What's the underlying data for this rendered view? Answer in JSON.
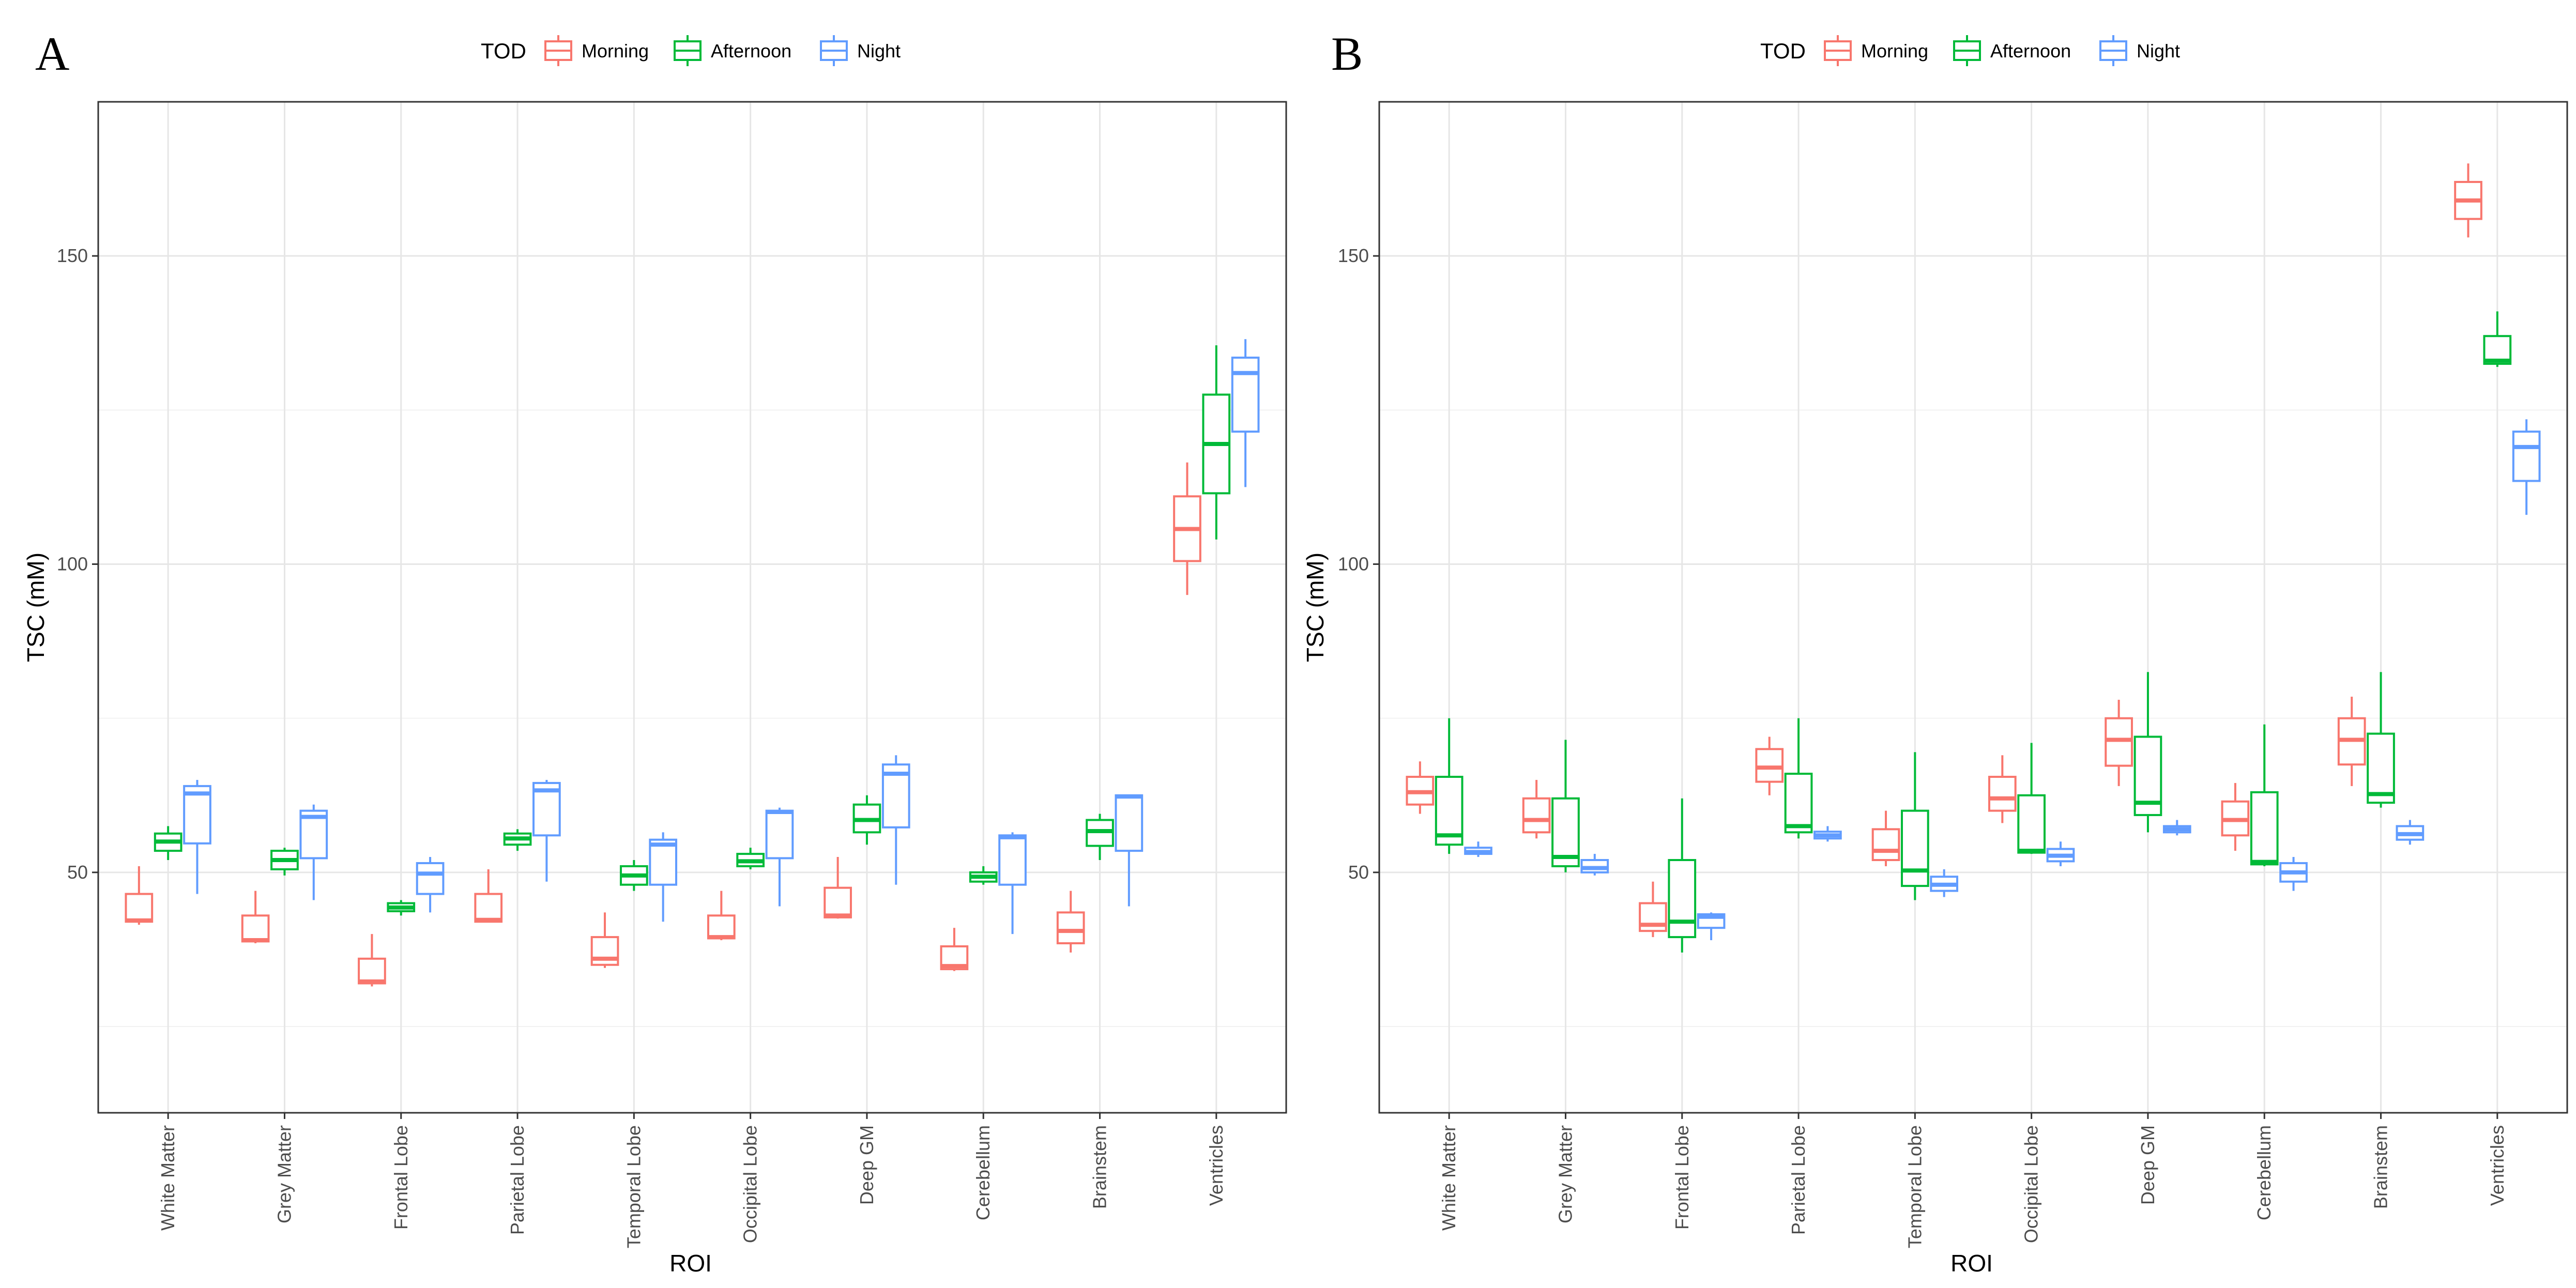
{
  "chart_data": [
    {
      "type": "boxplot",
      "panel_label": "A",
      "xlabel": "ROI",
      "ylabel": "TSC (mM)",
      "ylim": [
        11,
        175
      ],
      "yticks": [
        50,
        100,
        150
      ],
      "grid": true,
      "legend": {
        "title": "TOD",
        "position": "top",
        "entries": [
          {
            "name": "Morning",
            "color": "#F8766D"
          },
          {
            "name": "Afternoon",
            "color": "#00BA38"
          },
          {
            "name": "Night",
            "color": "#619CFF"
          }
        ]
      },
      "categories": [
        "White Matter",
        "Grey Matter",
        "Frontal Lobe",
        "Parietal Lobe",
        "Temporal Lobe",
        "Occipital Lobe",
        "Deep GM",
        "Cerebellum",
        "Brainstem",
        "Ventricles"
      ],
      "series": [
        {
          "name": "Morning",
          "color": "#F8766D",
          "boxes": [
            {
              "min": 41.5,
              "q1": 42,
              "median": 42.2,
              "q3": 46.5,
              "max": 51
            },
            {
              "min": 38.5,
              "q1": 38.8,
              "median": 39,
              "q3": 43,
              "max": 47
            },
            {
              "min": 31.5,
              "q1": 32,
              "median": 32.3,
              "q3": 36,
              "max": 40
            },
            {
              "min": 42,
              "q1": 42,
              "median": 42.3,
              "q3": 46.5,
              "max": 50.5
            },
            {
              "min": 34.5,
              "q1": 35,
              "median": 36,
              "q3": 39.5,
              "max": 43.5
            },
            {
              "min": 39,
              "q1": 39.3,
              "median": 39.5,
              "q3": 43,
              "max": 47
            },
            {
              "min": 42.5,
              "q1": 42.7,
              "median": 43,
              "q3": 47.5,
              "max": 52.5
            },
            {
              "min": 34,
              "q1": 34.3,
              "median": 34.8,
              "q3": 38,
              "max": 41
            },
            {
              "min": 37,
              "q1": 38.5,
              "median": 40.5,
              "q3": 43.5,
              "max": 47
            },
            {
              "min": 95,
              "q1": 100.5,
              "median": 105.7,
              "q3": 111,
              "max": 116.5
            }
          ]
        },
        {
          "name": "Afternoon",
          "color": "#00BA38",
          "boxes": [
            {
              "min": 52,
              "q1": 53.5,
              "median": 55,
              "q3": 56.3,
              "max": 57.5
            },
            {
              "min": 49.5,
              "q1": 50.5,
              "median": 52,
              "q3": 53.5,
              "max": 54
            },
            {
              "min": 43,
              "q1": 43.7,
              "median": 44.3,
              "q3": 45,
              "max": 45.5
            },
            {
              "min": 53.5,
              "q1": 54.5,
              "median": 55.5,
              "q3": 56.3,
              "max": 57
            },
            {
              "min": 47,
              "q1": 48,
              "median": 49.5,
              "q3": 51,
              "max": 52
            },
            {
              "min": 50.5,
              "q1": 51,
              "median": 51.8,
              "q3": 53,
              "max": 54
            },
            {
              "min": 54.5,
              "q1": 56.5,
              "median": 58.5,
              "q3": 61,
              "max": 62.5
            },
            {
              "min": 48,
              "q1": 48.5,
              "median": 49.3,
              "q3": 50,
              "max": 51
            },
            {
              "min": 52,
              "q1": 54.3,
              "median": 56.7,
              "q3": 58.5,
              "max": 59.5
            },
            {
              "min": 104,
              "q1": 111.5,
              "median": 119.5,
              "q3": 127.5,
              "max": 135.5
            }
          ]
        },
        {
          "name": "Night",
          "color": "#619CFF",
          "boxes": [
            {
              "min": 46.5,
              "q1": 54.7,
              "median": 62.8,
              "q3": 64,
              "max": 65
            },
            {
              "min": 45.5,
              "q1": 52.3,
              "median": 59,
              "q3": 60,
              "max": 61
            },
            {
              "min": 43.5,
              "q1": 46.5,
              "median": 49.8,
              "q3": 51.5,
              "max": 52.5
            },
            {
              "min": 48.5,
              "q1": 56,
              "median": 63.3,
              "q3": 64.5,
              "max": 65
            },
            {
              "min": 42,
              "q1": 48,
              "median": 54.5,
              "q3": 55.3,
              "max": 56.5
            },
            {
              "min": 44.5,
              "q1": 52.3,
              "median": 59.8,
              "q3": 60,
              "max": 60.5
            },
            {
              "min": 48,
              "q1": 57.3,
              "median": 66,
              "q3": 67.5,
              "max": 69
            },
            {
              "min": 40,
              "q1": 48,
              "median": 55.7,
              "q3": 56,
              "max": 56.5
            },
            {
              "min": 44.5,
              "q1": 53.5,
              "median": 62.3,
              "q3": 62.5,
              "max": 62.5
            },
            {
              "min": 112.5,
              "q1": 121.5,
              "median": 131,
              "q3": 133.5,
              "max": 136.5
            }
          ]
        }
      ]
    },
    {
      "type": "boxplot",
      "panel_label": "B",
      "xlabel": "ROI",
      "ylabel": "TSC (mM)",
      "ylim": [
        11,
        175
      ],
      "yticks": [
        50,
        100,
        150
      ],
      "grid": true,
      "legend": {
        "title": "TOD",
        "position": "top",
        "entries": [
          {
            "name": "Morning",
            "color": "#F8766D"
          },
          {
            "name": "Afternoon",
            "color": "#00BA38"
          },
          {
            "name": "Night",
            "color": "#619CFF"
          }
        ]
      },
      "categories": [
        "White Matter",
        "Grey Matter",
        "Frontal Lobe",
        "Parietal Lobe",
        "Temporal Lobe",
        "Occipital Lobe",
        "Deep GM",
        "Cerebellum",
        "Brainstem",
        "Ventricles"
      ],
      "series": [
        {
          "name": "Morning",
          "color": "#F8766D",
          "boxes": [
            {
              "min": 59.5,
              "q1": 61,
              "median": 63,
              "q3": 65.5,
              "max": 68
            },
            {
              "min": 55.5,
              "q1": 56.5,
              "median": 58.5,
              "q3": 62,
              "max": 65
            },
            {
              "min": 39.5,
              "q1": 40.5,
              "median": 41.5,
              "q3": 45,
              "max": 48.5
            },
            {
              "min": 62.5,
              "q1": 64.7,
              "median": 67,
              "q3": 70,
              "max": 72
            },
            {
              "min": 51,
              "q1": 52,
              "median": 53.5,
              "q3": 57,
              "max": 60
            },
            {
              "min": 58,
              "q1": 60,
              "median": 62,
              "q3": 65.5,
              "max": 69
            },
            {
              "min": 64,
              "q1": 67.3,
              "median": 71.5,
              "q3": 75,
              "max": 78
            },
            {
              "min": 53.5,
              "q1": 56,
              "median": 58.5,
              "q3": 61.5,
              "max": 64.5
            },
            {
              "min": 64,
              "q1": 67.5,
              "median": 71.5,
              "q3": 75,
              "max": 78.5
            },
            {
              "min": 153,
              "q1": 156,
              "median": 159,
              "q3": 162,
              "max": 165
            }
          ]
        },
        {
          "name": "Afternoon",
          "color": "#00BA38",
          "boxes": [
            {
              "min": 53,
              "q1": 54.5,
              "median": 56,
              "q3": 65.5,
              "max": 75
            },
            {
              "min": 50,
              "q1": 51,
              "median": 52.5,
              "q3": 62,
              "max": 71.5
            },
            {
              "min": 37,
              "q1": 39.5,
              "median": 42,
              "q3": 52,
              "max": 62
            },
            {
              "min": 55.5,
              "q1": 56.5,
              "median": 57.5,
              "q3": 66,
              "max": 75
            },
            {
              "min": 45.5,
              "q1": 47.8,
              "median": 50.3,
              "q3": 60,
              "max": 69.5
            },
            {
              "min": 53,
              "q1": 53.2,
              "median": 53.5,
              "q3": 62.5,
              "max": 71
            },
            {
              "min": 56.5,
              "q1": 59.3,
              "median": 61.3,
              "q3": 72,
              "max": 82.5
            },
            {
              "min": 51,
              "q1": 51.3,
              "median": 51.7,
              "q3": 63,
              "max": 74
            },
            {
              "min": 60.5,
              "q1": 61.3,
              "median": 62.7,
              "q3": 72.5,
              "max": 82.5
            },
            {
              "min": 132,
              "q1": 132.5,
              "median": 133,
              "q3": 137,
              "max": 141
            }
          ]
        },
        {
          "name": "Night",
          "color": "#619CFF",
          "boxes": [
            {
              "min": 52.5,
              "q1": 53,
              "median": 53.3,
              "q3": 54,
              "max": 55
            },
            {
              "min": 49.5,
              "q1": 50,
              "median": 50.7,
              "q3": 52,
              "max": 53
            },
            {
              "min": 39,
              "q1": 41,
              "median": 42.8,
              "q3": 43.2,
              "max": 43.5
            },
            {
              "min": 55,
              "q1": 55.5,
              "median": 56,
              "q3": 56.6,
              "max": 57.5
            },
            {
              "min": 46,
              "q1": 47,
              "median": 48,
              "q3": 49.3,
              "max": 50.5
            },
            {
              "min": 51,
              "q1": 51.8,
              "median": 52.7,
              "q3": 53.8,
              "max": 55
            },
            {
              "min": 56,
              "q1": 56.5,
              "median": 57,
              "q3": 57.5,
              "max": 58.5
            },
            {
              "min": 47,
              "q1": 48.5,
              "median": 50,
              "q3": 51.5,
              "max": 52.5
            },
            {
              "min": 54.5,
              "q1": 55.3,
              "median": 56.2,
              "q3": 57.5,
              "max": 58.5
            },
            {
              "min": 108,
              "q1": 113.5,
              "median": 119,
              "q3": 121.5,
              "max": 123.5
            }
          ]
        }
      ]
    }
  ]
}
